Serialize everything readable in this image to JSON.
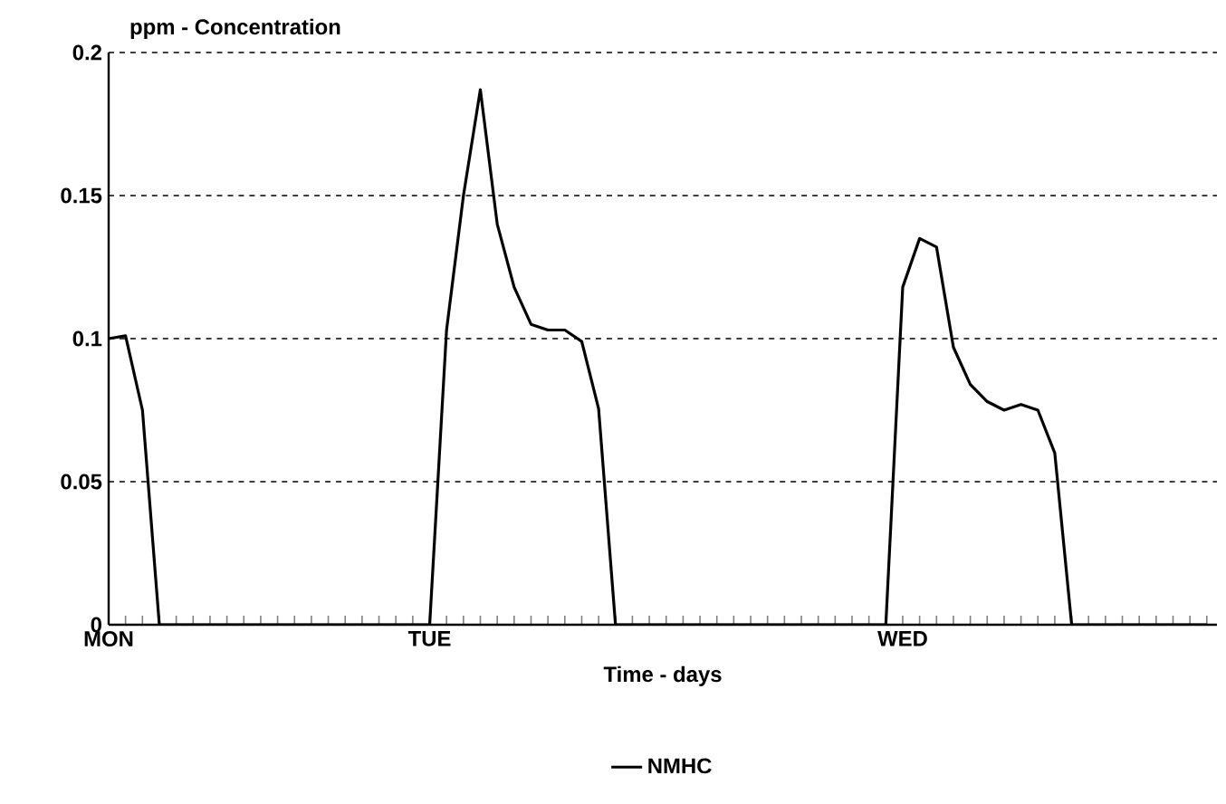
{
  "chart_data": {
    "type": "line",
    "xlabel": "Time - days",
    "ylabel": "ppm - Concentration",
    "categories": [
      "MON",
      null,
      null,
      null,
      null,
      null,
      null,
      null,
      null,
      null,
      null,
      null,
      null,
      null,
      null,
      null,
      null,
      null,
      null,
      "TUE",
      null,
      null,
      null,
      null,
      null,
      null,
      null,
      null,
      null,
      null,
      null,
      null,
      null,
      null,
      null,
      null,
      null,
      null,
      null,
      null,
      null,
      null,
      null,
      null,
      null,
      null,
      null,
      "WED",
      null,
      null,
      null,
      null,
      null,
      null,
      null,
      null,
      null,
      null,
      null,
      null,
      null,
      null,
      null,
      null,
      null,
      null
    ],
    "series": [
      {
        "name": "NMHC",
        "color": "#000000",
        "values": [
          0.1,
          0.101,
          0.075,
          0,
          0,
          0,
          0,
          0,
          0,
          0,
          0,
          0,
          0,
          0,
          0,
          0,
          0,
          0,
          0,
          0,
          0.103,
          0.15,
          0.187,
          0.14,
          0.118,
          0.105,
          0.103,
          0.103,
          0.099,
          0.0755,
          0,
          0,
          0,
          0,
          0,
          0,
          0,
          0,
          0,
          0,
          0,
          0,
          0,
          0,
          0,
          0,
          0,
          0.118,
          0.135,
          0.132,
          0.097,
          0.084,
          0.078,
          0.075,
          0.077,
          0.075,
          0.06,
          0,
          0,
          0,
          0,
          0,
          0,
          0,
          0,
          0
        ]
      }
    ],
    "ylim": [
      0,
      0.2
    ],
    "yticks": [
      0,
      0.05,
      0.1,
      0.15,
      0.2
    ],
    "grid": "y",
    "legend": "bottom",
    "marker": "none",
    "line_style": "solid"
  }
}
